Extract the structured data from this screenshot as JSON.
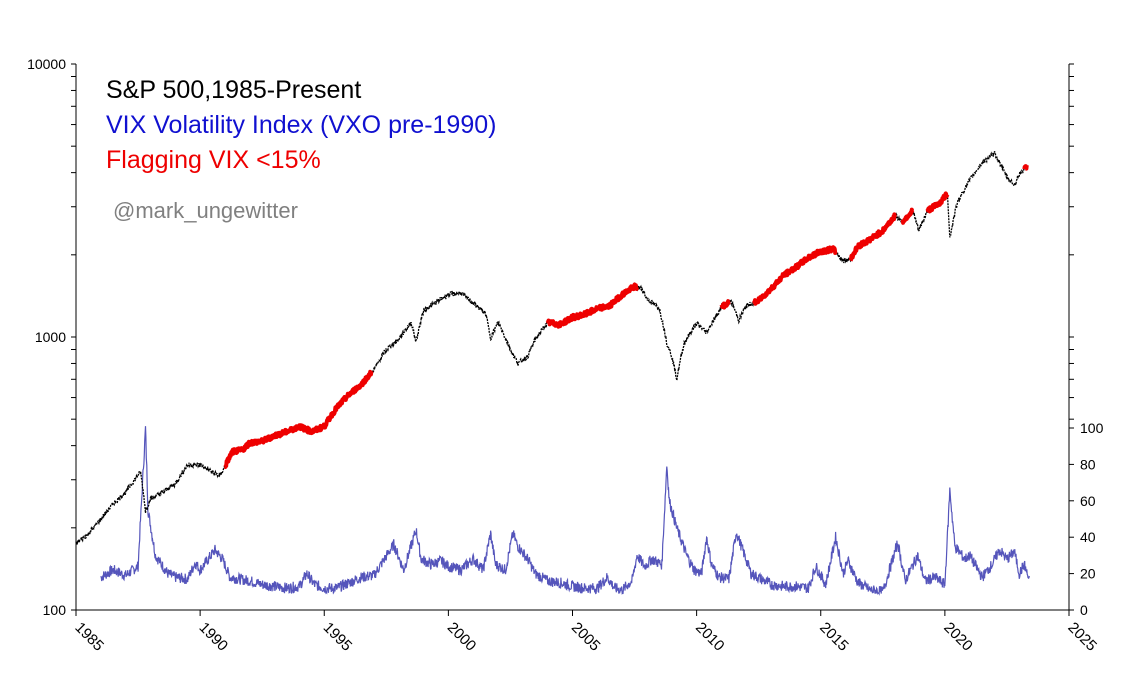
{
  "chart_data": {
    "type": "line",
    "title_lines": [
      {
        "text": "S&P 500,1985-Present",
        "color": "#000000"
      },
      {
        "text": "VIX Volatility Index (VXO pre-1990)",
        "color": "#1010d0"
      },
      {
        "text": "Flagging VIX <15%",
        "color": "#ee0000"
      }
    ],
    "watermark": {
      "text": "@mark_ungewitter",
      "color": "#808080"
    },
    "x_axis": {
      "min": 1985,
      "max": 2025,
      "ticks": [
        "1985",
        "1990",
        "1995",
        "2000",
        "2005",
        "2010",
        "2015",
        "2020",
        "2025"
      ]
    },
    "y_left": {
      "scale": "log",
      "min": 100,
      "max": 10000,
      "ticks": [
        "100",
        "1000",
        "10000"
      ]
    },
    "y_right": {
      "scale": "linear",
      "min": 0,
      "max": 100,
      "ticks": [
        "0",
        "20",
        "40",
        "60",
        "80",
        "100"
      ],
      "note": "VIX occupies lower portion of plot"
    },
    "colors": {
      "spx": "#000000",
      "vix": "#5555bb",
      "flag": "#ee0000"
    },
    "series": [
      {
        "name": "S&P 500",
        "axis": "left",
        "points": [
          [
            1985.0,
            175
          ],
          [
            1985.5,
            190
          ],
          [
            1986.0,
            215
          ],
          [
            1986.5,
            245
          ],
          [
            1987.0,
            270
          ],
          [
            1987.6,
            320
          ],
          [
            1987.8,
            230
          ],
          [
            1988.0,
            255
          ],
          [
            1988.5,
            270
          ],
          [
            1989.0,
            290
          ],
          [
            1989.5,
            340
          ],
          [
            1990.0,
            340
          ],
          [
            1990.5,
            320
          ],
          [
            1990.8,
            310
          ],
          [
            1991.0,
            335
          ],
          [
            1991.3,
            380
          ],
          [
            1991.7,
            385
          ],
          [
            1992.0,
            410
          ],
          [
            1992.5,
            415
          ],
          [
            1993.0,
            435
          ],
          [
            1993.5,
            450
          ],
          [
            1994.0,
            470
          ],
          [
            1994.5,
            450
          ],
          [
            1995.0,
            470
          ],
          [
            1995.5,
            550
          ],
          [
            1996.0,
            615
          ],
          [
            1996.5,
            670
          ],
          [
            1997.0,
            760
          ],
          [
            1997.5,
            900
          ],
          [
            1998.0,
            980
          ],
          [
            1998.5,
            1130
          ],
          [
            1998.7,
            960
          ],
          [
            1999.0,
            1250
          ],
          [
            1999.5,
            1340
          ],
          [
            2000.0,
            1430
          ],
          [
            2000.5,
            1450
          ],
          [
            2001.0,
            1330
          ],
          [
            2001.5,
            1220
          ],
          [
            2001.7,
            990
          ],
          [
            2002.0,
            1130
          ],
          [
            2002.5,
            900
          ],
          [
            2002.8,
            800
          ],
          [
            2003.2,
            850
          ],
          [
            2003.5,
            980
          ],
          [
            2004.0,
            1130
          ],
          [
            2004.5,
            1110
          ],
          [
            2005.0,
            1180
          ],
          [
            2005.5,
            1210
          ],
          [
            2006.0,
            1270
          ],
          [
            2006.5,
            1300
          ],
          [
            2007.0,
            1430
          ],
          [
            2007.5,
            1530
          ],
          [
            2007.8,
            1500
          ],
          [
            2008.0,
            1380
          ],
          [
            2008.5,
            1270
          ],
          [
            2008.8,
            950
          ],
          [
            2009.0,
            850
          ],
          [
            2009.2,
            700
          ],
          [
            2009.5,
            950
          ],
          [
            2010.0,
            1120
          ],
          [
            2010.4,
            1040
          ],
          [
            2010.8,
            1200
          ],
          [
            2011.0,
            1290
          ],
          [
            2011.4,
            1350
          ],
          [
            2011.7,
            1150
          ],
          [
            2012.0,
            1300
          ],
          [
            2012.5,
            1360
          ],
          [
            2013.0,
            1500
          ],
          [
            2013.5,
            1680
          ],
          [
            2014.0,
            1800
          ],
          [
            2014.5,
            1950
          ],
          [
            2015.0,
            2060
          ],
          [
            2015.5,
            2100
          ],
          [
            2015.9,
            1900
          ],
          [
            2016.2,
            1930
          ],
          [
            2016.5,
            2150
          ],
          [
            2017.0,
            2280
          ],
          [
            2017.5,
            2450
          ],
          [
            2018.0,
            2780
          ],
          [
            2018.3,
            2650
          ],
          [
            2018.7,
            2900
          ],
          [
            2018.95,
            2450
          ],
          [
            2019.3,
            2900
          ],
          [
            2019.8,
            3100
          ],
          [
            2020.1,
            3350
          ],
          [
            2020.2,
            2300
          ],
          [
            2020.5,
            3100
          ],
          [
            2021.0,
            3750
          ],
          [
            2021.5,
            4350
          ],
          [
            2022.0,
            4700
          ],
          [
            2022.5,
            3850
          ],
          [
            2022.8,
            3600
          ],
          [
            2023.0,
            3950
          ],
          [
            2023.3,
            4200
          ]
        ]
      },
      {
        "name": "VIX",
        "axis": "right",
        "points": [
          [
            1986.0,
            18
          ],
          [
            1986.5,
            22
          ],
          [
            1987.0,
            19
          ],
          [
            1987.5,
            24
          ],
          [
            1987.8,
            100
          ],
          [
            1987.9,
            55
          ],
          [
            1988.2,
            30
          ],
          [
            1988.7,
            20
          ],
          [
            1989.0,
            18
          ],
          [
            1989.5,
            17
          ],
          [
            1989.8,
            26
          ],
          [
            1990.0,
            22
          ],
          [
            1990.6,
            33
          ],
          [
            1990.9,
            28
          ],
          [
            1991.2,
            18
          ],
          [
            1991.6,
            17
          ],
          [
            1992.0,
            16
          ],
          [
            1992.5,
            14
          ],
          [
            1993.0,
            13
          ],
          [
            1993.5,
            12
          ],
          [
            1994.0,
            13
          ],
          [
            1994.3,
            20
          ],
          [
            1994.6,
            14
          ],
          [
            1995.0,
            12
          ],
          [
            1995.5,
            12
          ],
          [
            1996.0,
            15
          ],
          [
            1996.5,
            18
          ],
          [
            1997.0,
            19
          ],
          [
            1997.8,
            36
          ],
          [
            1998.2,
            22
          ],
          [
            1998.7,
            44
          ],
          [
            1998.9,
            28
          ],
          [
            1999.3,
            25
          ],
          [
            1999.7,
            27
          ],
          [
            2000.0,
            24
          ],
          [
            2000.5,
            22
          ],
          [
            2001.0,
            28
          ],
          [
            2001.4,
            22
          ],
          [
            2001.7,
            42
          ],
          [
            2001.9,
            25
          ],
          [
            2002.3,
            22
          ],
          [
            2002.6,
            42
          ],
          [
            2002.8,
            35
          ],
          [
            2003.2,
            28
          ],
          [
            2003.5,
            20
          ],
          [
            2004.0,
            16
          ],
          [
            2004.5,
            15
          ],
          [
            2005.0,
            13
          ],
          [
            2005.5,
            12
          ],
          [
            2006.0,
            12
          ],
          [
            2006.4,
            18
          ],
          [
            2006.7,
            12
          ],
          [
            2007.0,
            11
          ],
          [
            2007.4,
            16
          ],
          [
            2007.6,
            30
          ],
          [
            2007.9,
            24
          ],
          [
            2008.2,
            28
          ],
          [
            2008.6,
            25
          ],
          [
            2008.8,
            80
          ],
          [
            2008.9,
            60
          ],
          [
            2009.2,
            45
          ],
          [
            2009.6,
            30
          ],
          [
            2009.9,
            22
          ],
          [
            2010.2,
            20
          ],
          [
            2010.4,
            40
          ],
          [
            2010.6,
            25
          ],
          [
            2010.9,
            18
          ],
          [
            2011.3,
            17
          ],
          [
            2011.6,
            43
          ],
          [
            2011.8,
            35
          ],
          [
            2012.2,
            20
          ],
          [
            2012.6,
            17
          ],
          [
            2013.0,
            14
          ],
          [
            2013.5,
            13
          ],
          [
            2014.0,
            13
          ],
          [
            2014.5,
            12
          ],
          [
            2014.8,
            24
          ],
          [
            2015.2,
            14
          ],
          [
            2015.6,
            40
          ],
          [
            2015.9,
            20
          ],
          [
            2016.1,
            27
          ],
          [
            2016.5,
            15
          ],
          [
            2017.0,
            11
          ],
          [
            2017.5,
            10
          ],
          [
            2018.1,
            37
          ],
          [
            2018.4,
            16
          ],
          [
            2018.9,
            30
          ],
          [
            2019.2,
            16
          ],
          [
            2019.6,
            18
          ],
          [
            2020.0,
            14
          ],
          [
            2020.2,
            66
          ],
          [
            2020.4,
            35
          ],
          [
            2020.8,
            28
          ],
          [
            2021.0,
            30
          ],
          [
            2021.5,
            18
          ],
          [
            2021.9,
            25
          ],
          [
            2022.2,
            33
          ],
          [
            2022.5,
            28
          ],
          [
            2022.8,
            32
          ],
          [
            2023.0,
            20
          ],
          [
            2023.2,
            25
          ],
          [
            2023.4,
            16
          ]
        ]
      }
    ],
    "flagged_periods": [
      [
        1991.0,
        1992.0
      ],
      [
        1992.0,
        1995.3
      ],
      [
        1995.3,
        1996.9
      ],
      [
        2004.0,
        2007.6
      ],
      [
        2011.0,
        2011.3
      ],
      [
        2012.3,
        2015.6
      ],
      [
        2016.2,
        2018.0
      ],
      [
        2018.3,
        2018.7
      ],
      [
        2019.3,
        2020.1
      ],
      [
        2023.2,
        2023.4
      ]
    ]
  }
}
